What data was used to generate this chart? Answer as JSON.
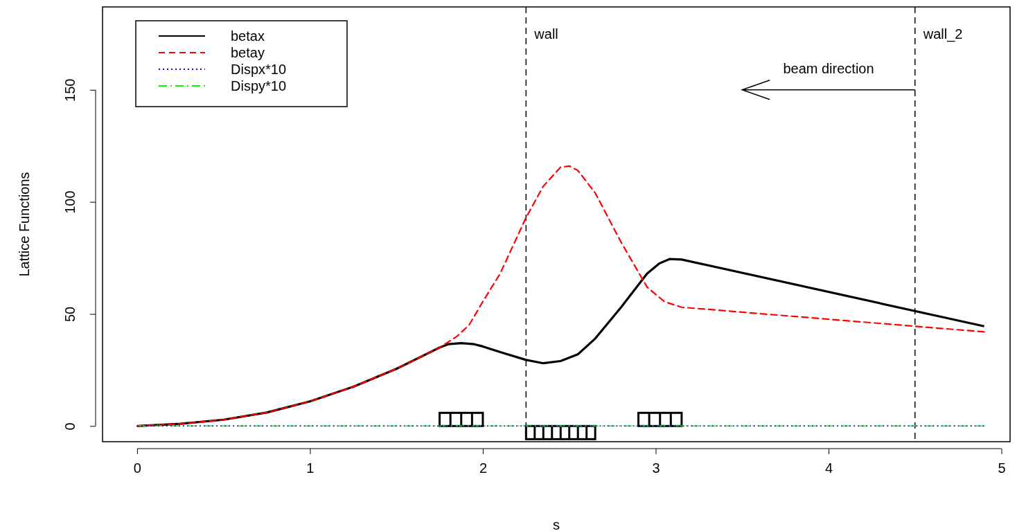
{
  "chart_data": {
    "type": "line",
    "xlabel": "s",
    "ylabel": "Lattice Functions",
    "xlim": [
      -0.2,
      5.05
    ],
    "ylim": [
      -7,
      187
    ],
    "xticks": [
      0,
      1,
      2,
      3,
      4,
      5
    ],
    "yticks": [
      0,
      50,
      100,
      150
    ],
    "legend": "top left",
    "grid": false,
    "series": [
      {
        "name": "betax",
        "color": "#000000",
        "line_style": "solid",
        "x": [
          0,
          0.25,
          0.5,
          0.75,
          1,
          1.25,
          1.5,
          1.75,
          1.8,
          1.875,
          1.95,
          2.0,
          2.1,
          2.25,
          2.35,
          2.45,
          2.55,
          2.65,
          2.8,
          2.95,
          3.02,
          3.08,
          3.15,
          4.9
        ],
        "values": [
          0,
          1,
          2.8,
          6,
          11,
          17.5,
          25.5,
          35,
          36.5,
          37,
          36.5,
          35.5,
          33,
          29.5,
          28,
          29,
          32,
          39,
          53,
          68,
          72.5,
          74.5,
          74.3,
          44.5
        ]
      },
      {
        "name": "betay",
        "color": "#ff0000",
        "line_style": "dashed",
        "x": [
          0,
          0.25,
          0.5,
          0.75,
          1,
          1.25,
          1.5,
          1.75,
          1.85,
          1.92,
          2.0,
          2.1,
          2.25,
          2.35,
          2.45,
          2.5,
          2.55,
          2.65,
          2.8,
          2.95,
          3.05,
          3.15,
          4.5,
          4.9
        ],
        "values": [
          0,
          1,
          2.8,
          6,
          11,
          17.5,
          25.5,
          35,
          40,
          45,
          55.5,
          68,
          93,
          107,
          115.5,
          116,
          114,
          104,
          82,
          62,
          55.5,
          53,
          44.5,
          42
        ]
      },
      {
        "name": "Dispx*10",
        "color": "#0000ff",
        "line_style": "dotted",
        "x": [
          0,
          4.9
        ],
        "values": [
          0,
          0
        ]
      },
      {
        "name": "Dispy*10",
        "color": "#00ff00",
        "line_style": "dashdot",
        "x": [
          0,
          4.9
        ],
        "values": [
          0,
          0
        ]
      }
    ],
    "ref_lines": [
      {
        "axis": "x",
        "value": 2.25,
        "label": "wall",
        "color": "#000000",
        "line_style": "dashed"
      },
      {
        "axis": "x",
        "value": 4.5,
        "label": "wall_2",
        "color": "#000000",
        "line_style": "dashed"
      }
    ],
    "annotations": [
      "beam direction"
    ]
  }
}
